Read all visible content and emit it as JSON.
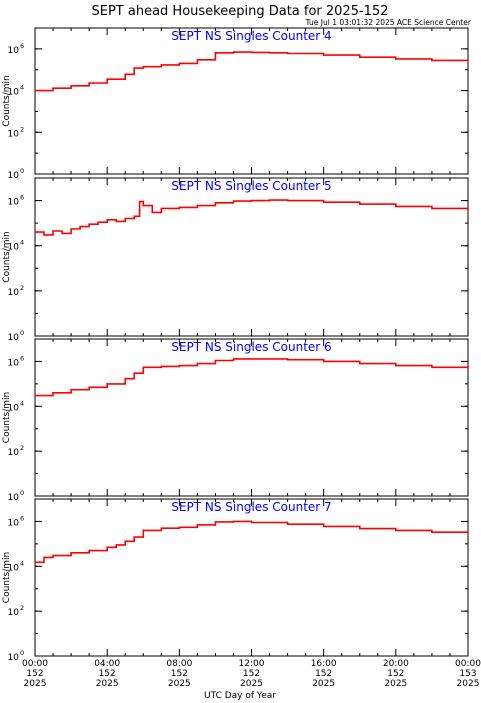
{
  "title": "SEPT ahead Housekeeping Data for 2025-152",
  "timestamp": "Tue Jul  1 03:01:32 2025 ACE Science Center",
  "ylabel": "Counts/min",
  "xlabel": "UTC Day of Year",
  "x_ticks": [
    {
      "time": "00:00",
      "day": "152",
      "year": "2025"
    },
    {
      "time": "04:00",
      "day": "152",
      "year": "2025"
    },
    {
      "time": "08:00",
      "day": "152",
      "year": "2025"
    },
    {
      "time": "12:00",
      "day": "152",
      "year": "2025"
    },
    {
      "time": "16:00",
      "day": "152",
      "year": "2025"
    },
    {
      "time": "20:00",
      "day": "152",
      "year": "2025"
    },
    {
      "time": "00:00",
      "day": "153",
      "year": "2025"
    }
  ],
  "y_ticks": [
    {
      "base": "10",
      "exp": "0"
    },
    {
      "base": "10",
      "exp": "2"
    },
    {
      "base": "10",
      "exp": "4"
    },
    {
      "base": "10",
      "exp": "6"
    }
  ],
  "colors": {
    "series": "#ff0000",
    "panel_title": "#0000ff",
    "axes": "#000000"
  },
  "chart_data": [
    {
      "type": "line",
      "title": "SEPT NS Singles Counter 4",
      "ylabel": "Counts/min",
      "xlabel": "UTC Day of Year",
      "y_scale": "log",
      "ylim": [
        1,
        10000000
      ],
      "xlim_hours": [
        0,
        24
      ],
      "x": [
        0.0,
        1.0,
        2.0,
        3.0,
        4.0,
        5.0,
        5.5,
        6.0,
        7.0,
        8.0,
        9.0,
        10.0,
        11.0,
        12.0,
        13.0,
        14.0,
        16.0,
        18.0,
        20.0,
        22.0,
        24.0
      ],
      "y": [
        10000,
        13000,
        17000,
        23000,
        35000,
        60000,
        120000,
        140000,
        170000,
        200000,
        300000,
        650000,
        700000,
        680000,
        650000,
        600000,
        500000,
        400000,
        330000,
        280000,
        250000
      ]
    },
    {
      "type": "line",
      "title": "SEPT NS Singles Counter 5",
      "ylabel": "Counts/min",
      "xlabel": "UTC Day of Year",
      "y_scale": "log",
      "ylim": [
        1,
        10000000
      ],
      "xlim_hours": [
        0,
        24
      ],
      "x": [
        0.0,
        0.5,
        1.0,
        1.5,
        2.0,
        2.5,
        3.0,
        3.5,
        4.0,
        4.5,
        5.0,
        5.5,
        5.8,
        6.0,
        6.5,
        7.0,
        8.0,
        9.0,
        10.0,
        11.0,
        12.0,
        13.0,
        14.0,
        16.0,
        18.0,
        20.0,
        22.0,
        24.0
      ],
      "y": [
        40000,
        30000,
        45000,
        35000,
        55000,
        70000,
        90000,
        110000,
        140000,
        120000,
        160000,
        200000,
        900000,
        600000,
        300000,
        450000,
        500000,
        600000,
        800000,
        950000,
        1000000,
        1050000,
        1000000,
        850000,
        700000,
        550000,
        450000,
        350000
      ]
    },
    {
      "type": "line",
      "title": "SEPT NS Singles Counter 6",
      "ylabel": "Counts/min",
      "xlabel": "UTC Day of Year",
      "y_scale": "log",
      "ylim": [
        1,
        10000000
      ],
      "xlim_hours": [
        0,
        24
      ],
      "x": [
        0.0,
        1.0,
        2.0,
        3.0,
        4.0,
        5.0,
        5.5,
        6.0,
        7.0,
        8.0,
        9.0,
        10.0,
        11.0,
        12.0,
        14.0,
        16.0,
        18.0,
        20.0,
        22.0,
        24.0
      ],
      "y": [
        30000,
        40000,
        55000,
        70000,
        100000,
        170000,
        300000,
        550000,
        600000,
        650000,
        800000,
        1100000,
        1300000,
        1300000,
        1200000,
        1000000,
        800000,
        650000,
        550000,
        480000
      ]
    },
    {
      "type": "line",
      "title": "SEPT NS Singles Counter 7",
      "ylabel": "Counts/min",
      "xlabel": "UTC Day of Year",
      "y_scale": "log",
      "ylim": [
        1,
        10000000
      ],
      "xlim_hours": [
        0,
        24
      ],
      "x": [
        0.0,
        0.5,
        1.0,
        2.0,
        3.0,
        4.0,
        4.5,
        5.0,
        5.5,
        6.0,
        7.0,
        8.0,
        9.0,
        10.0,
        11.0,
        12.0,
        14.0,
        16.0,
        18.0,
        20.0,
        22.0,
        24.0
      ],
      "y": [
        15000,
        25000,
        30000,
        40000,
        50000,
        70000,
        90000,
        130000,
        200000,
        400000,
        500000,
        550000,
        700000,
        950000,
        1000000,
        900000,
        750000,
        600000,
        480000,
        400000,
        330000,
        280000
      ]
    }
  ]
}
